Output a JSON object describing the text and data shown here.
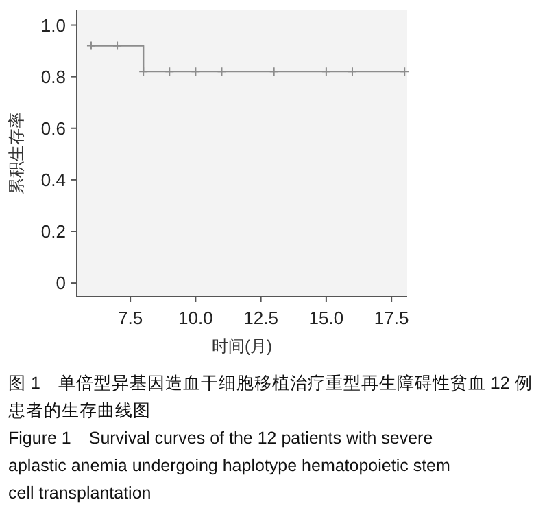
{
  "chart_data": {
    "type": "step",
    "xlabel": "时间(月)",
    "ylabel": "累积生存率",
    "x": [
      6,
      7,
      8,
      9,
      10,
      11,
      13,
      15,
      16,
      18
    ],
    "series": [
      {
        "color": "#8c8c8c",
        "values": [
          0.92,
          0.92,
          0.82,
          0.82,
          0.82,
          0.82,
          0.82,
          0.82,
          0.82,
          0.82
        ]
      }
    ],
    "marker": "cross",
    "line_style": "solid",
    "grid": false,
    "xlim": [
      5.45,
      18.1
    ],
    "xticks": [
      {
        "value": 7.5,
        "label": "7.5"
      },
      {
        "value": 10,
        "label": "10.0"
      },
      {
        "value": 12.5,
        "label": "12.5"
      },
      {
        "value": 15,
        "label": "15.0"
      },
      {
        "value": 17.5,
        "label": "17.5"
      }
    ],
    "ylim": [
      -0.053,
      1.06
    ],
    "yticks": [
      0,
      0.2,
      0.4,
      0.6,
      0.8,
      {
        "value": 1,
        "label": "1.0"
      }
    ],
    "annotations": [
      "图 1　单倍型异基因造血干细胞移植治疗重型再生障碍性贫血 12 例患者的生存曲线图",
      "Figure 1　Survival curves of the 12 patients with severe aplastic anemia undergoing haplotype hematopoietic stem cell transplantation"
    ]
  }
}
